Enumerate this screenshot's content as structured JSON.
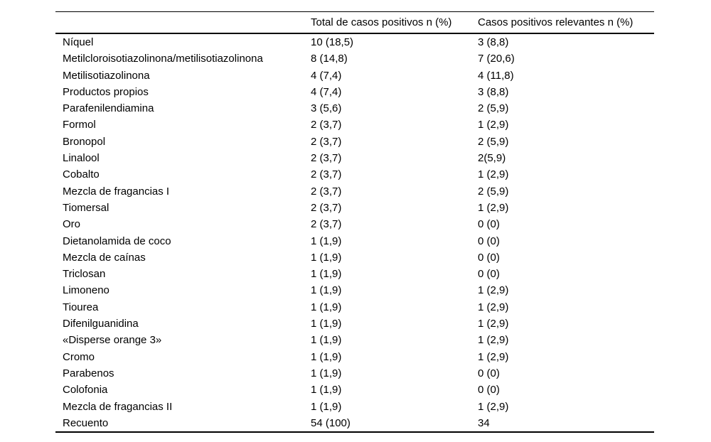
{
  "table": {
    "header": {
      "allergen_label": "",
      "total_label": "Total de casos positivos n (%)",
      "relevant_label": "Casos positivos relevantes n (%)"
    },
    "rows": [
      {
        "allergen": "Níquel",
        "total": "10 (18,5)",
        "relevant": "3 (8,8)"
      },
      {
        "allergen": "Metilcloroisotiazolinona/metilisotiazolinona",
        "total": "8 (14,8)",
        "relevant": "7 (20,6)"
      },
      {
        "allergen": "Metilisotiazolinona",
        "total": "4 (7,4)",
        "relevant": "4 (11,8)"
      },
      {
        "allergen": "Productos propios",
        "total": "4 (7,4)",
        "relevant": "3 (8,8)"
      },
      {
        "allergen": "Parafenilendiamina",
        "total": "3 (5,6)",
        "relevant": "2 (5,9)"
      },
      {
        "allergen": "Formol",
        "total": "2 (3,7)",
        "relevant": "1 (2,9)"
      },
      {
        "allergen": "Bronopol",
        "total": "2 (3,7)",
        "relevant": "2 (5,9)"
      },
      {
        "allergen": "Linalool",
        "total": "2 (3,7)",
        "relevant": "2(5,9)"
      },
      {
        "allergen": "Cobalto",
        "total": "2 (3,7)",
        "relevant": "1 (2,9)"
      },
      {
        "allergen": "Mezcla de fragancias I",
        "total": "2 (3,7)",
        "relevant": "2 (5,9)"
      },
      {
        "allergen": "Tiomersal",
        "total": "2 (3,7)",
        "relevant": "1 (2,9)"
      },
      {
        "allergen": "Oro",
        "total": "2 (3,7)",
        "relevant": "0 (0)"
      },
      {
        "allergen": "Dietanolamida de coco",
        "total": "1 (1,9)",
        "relevant": "0 (0)"
      },
      {
        "allergen": "Mezcla de caínas",
        "total": "1 (1,9)",
        "relevant": "0 (0)"
      },
      {
        "allergen": "Triclosan",
        "total": "1 (1,9)",
        "relevant": "0 (0)"
      },
      {
        "allergen": "Limoneno",
        "total": "1 (1,9)",
        "relevant": "1 (2,9)"
      },
      {
        "allergen": "Tiourea",
        "total": "1 (1,9)",
        "relevant": "1 (2,9)"
      },
      {
        "allergen": "Difenilguanidina",
        "total": "1 (1,9)",
        "relevant": "1 (2,9)"
      },
      {
        "allergen": "«Disperse orange 3»",
        "total": "1 (1,9)",
        "relevant": "1 (2,9)"
      },
      {
        "allergen": "Cromo",
        "total": "1 (1,9)",
        "relevant": "1 (2,9)"
      },
      {
        "allergen": "Parabenos",
        "total": "1 (1,9)",
        "relevant": "0 (0)"
      },
      {
        "allergen": "Colofonia",
        "total": "1 (1,9)",
        "relevant": "0 (0)"
      },
      {
        "allergen": "Mezcla de fragancias II",
        "total": "1 (1,9)",
        "relevant": "1 (2,9)"
      },
      {
        "allergen": "Recuento",
        "total": "54 (100)",
        "relevant": "34"
      }
    ]
  },
  "colors": {
    "background": "#ffffff",
    "text": "#000000",
    "rule": "#000000"
  }
}
